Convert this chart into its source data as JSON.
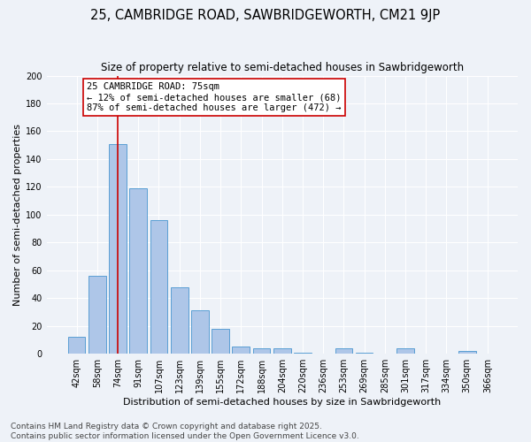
{
  "title": "25, CAMBRIDGE ROAD, SAWBRIDGEWORTH, CM21 9JP",
  "subtitle": "Size of property relative to semi-detached houses in Sawbridgeworth",
  "xlabel": "Distribution of semi-detached houses by size in Sawbridgeworth",
  "ylabel": "Number of semi-detached properties",
  "categories": [
    "42sqm",
    "58sqm",
    "74sqm",
    "91sqm",
    "107sqm",
    "123sqm",
    "139sqm",
    "155sqm",
    "172sqm",
    "188sqm",
    "204sqm",
    "220sqm",
    "236sqm",
    "253sqm",
    "269sqm",
    "285sqm",
    "301sqm",
    "317sqm",
    "334sqm",
    "350sqm",
    "366sqm"
  ],
  "values": [
    12,
    56,
    151,
    119,
    96,
    48,
    31,
    18,
    5,
    4,
    4,
    1,
    0,
    4,
    1,
    0,
    4,
    0,
    0,
    2,
    0
  ],
  "bar_color": "#aec6e8",
  "bar_edge_color": "#5a9fd4",
  "marker_index": 2,
  "annotation_title": "25 CAMBRIDGE ROAD: 75sqm",
  "annotation_line1": "← 12% of semi-detached houses are smaller (68)",
  "annotation_line2": "87% of semi-detached houses are larger (472) →",
  "vline_color": "#cc0000",
  "annotation_box_color": "#ffffff",
  "annotation_box_edgecolor": "#cc0000",
  "footer": "Contains HM Land Registry data © Crown copyright and database right 2025.\nContains public sector information licensed under the Open Government Licence v3.0.",
  "bg_color": "#eef2f8",
  "ylim": [
    0,
    200
  ],
  "title_fontsize": 10.5,
  "subtitle_fontsize": 8.5,
  "axis_label_fontsize": 8,
  "tick_fontsize": 7,
  "footer_fontsize": 6.5,
  "annotation_fontsize": 7.5
}
